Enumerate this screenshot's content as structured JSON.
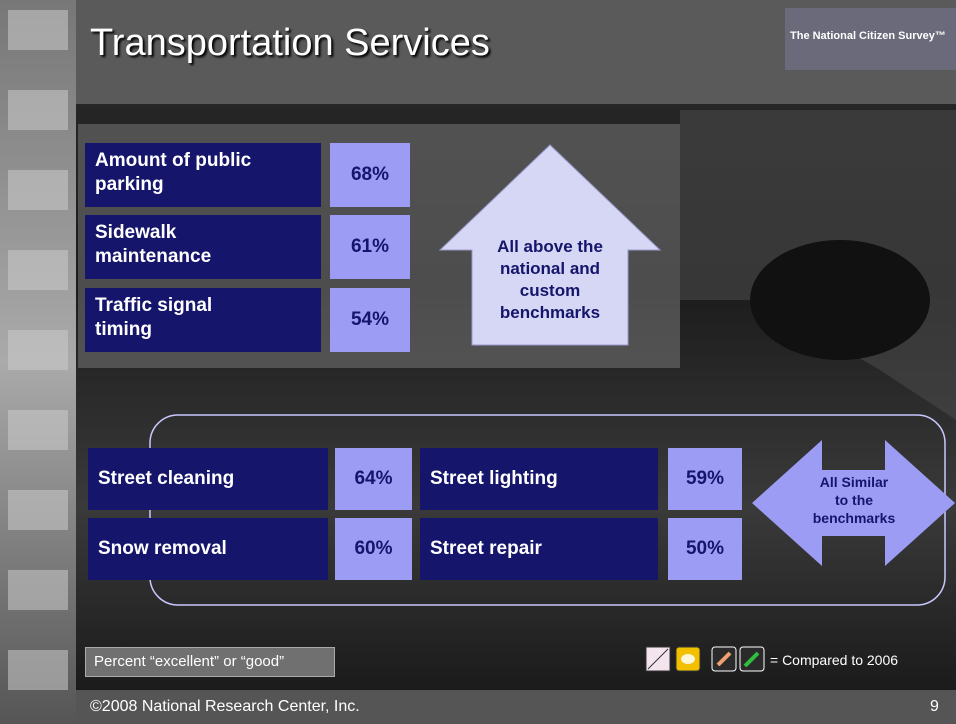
{
  "slide": {
    "title": "Transportation Services",
    "logo": "The National Citizen Survey™",
    "top_items": [
      {
        "label": "Amount of public parking",
        "value": "68%"
      },
      {
        "label": "Sidewalk maintenance",
        "value": "61%"
      },
      {
        "label": "Traffic signal timing",
        "value": "54%"
      }
    ],
    "top_arrow": "All above the national and custom benchmarks",
    "bottom_items": [
      {
        "label": "Street cleaning",
        "value": "64%"
      },
      {
        "label": "Street lighting",
        "value": "59%"
      },
      {
        "label": "Snow removal",
        "value": "60%"
      },
      {
        "label": "Street repair",
        "value": "50%"
      }
    ],
    "bottom_arrow": "All Similar to the benchmarks",
    "note": "Percent “excellent” or “good”",
    "legend": "= Compared to 2006",
    "footer": "©2008 National Research Center, Inc.",
    "page": "9"
  }
}
